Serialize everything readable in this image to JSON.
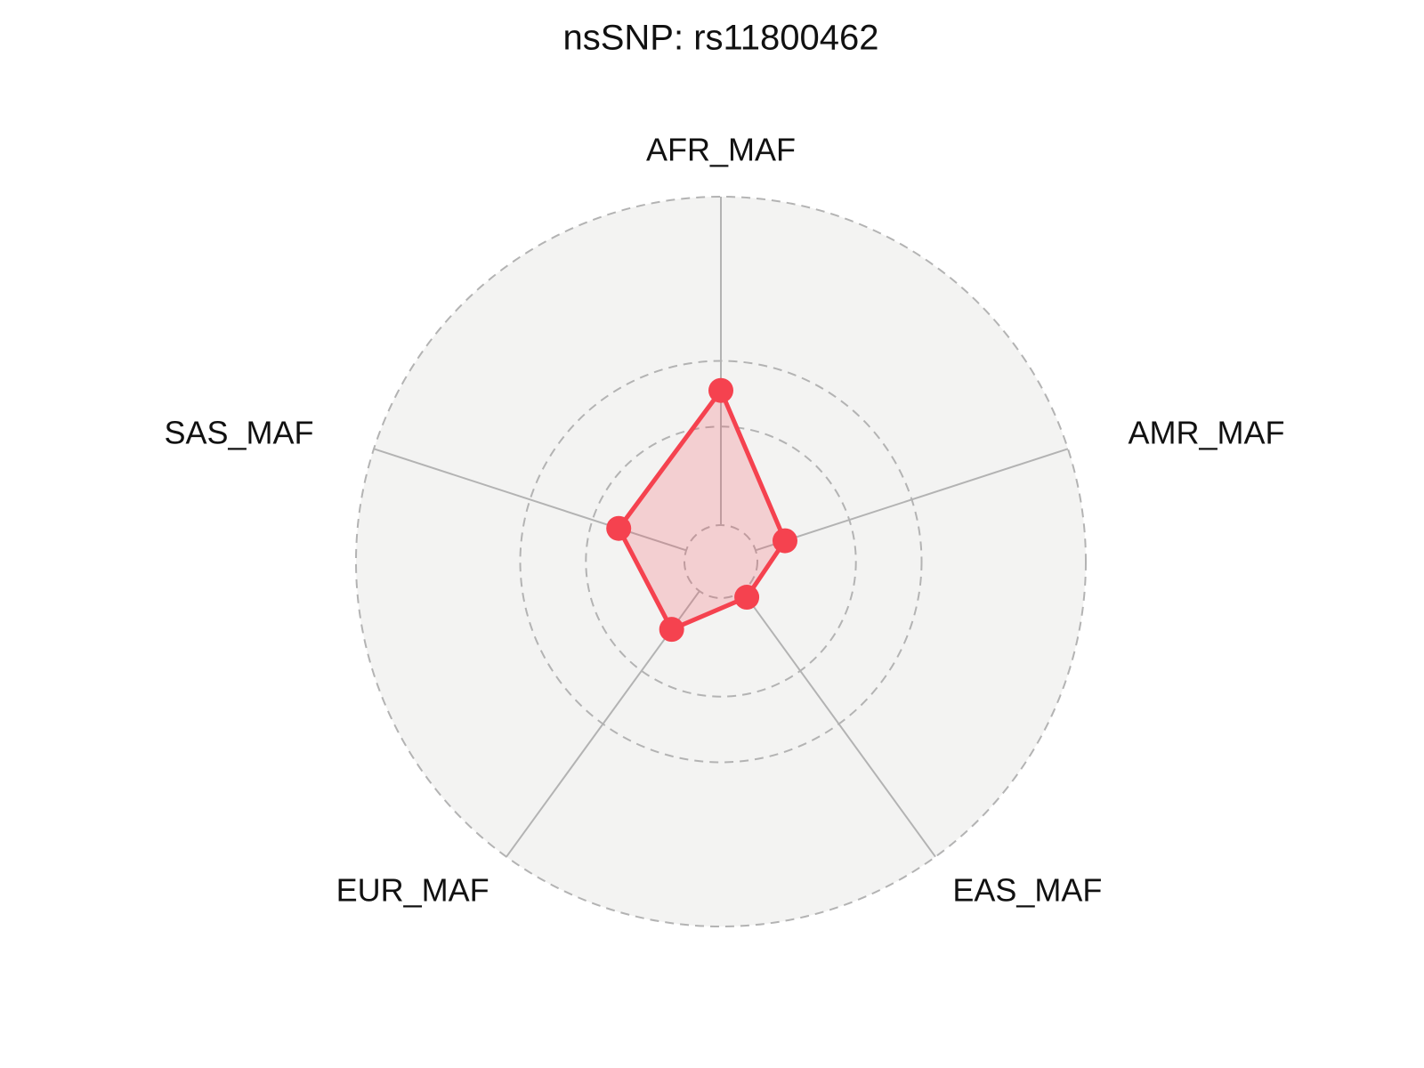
{
  "chart_data": {
    "type": "radar",
    "title": "nsSNP: rs11800462",
    "categories": [
      "AFR_MAF",
      "AMR_MAF",
      "EAS_MAF",
      "EUR_MAF",
      "SAS_MAF"
    ],
    "series": [
      {
        "color": "#f5424f",
        "values": [
          0.41,
          0.094,
          0.023,
          0.144,
          0.216
        ]
      }
    ],
    "rlim": [
      0,
      1
    ],
    "rticks": [
      0,
      0.3,
      0.5,
      1
    ],
    "grid": true
  }
}
